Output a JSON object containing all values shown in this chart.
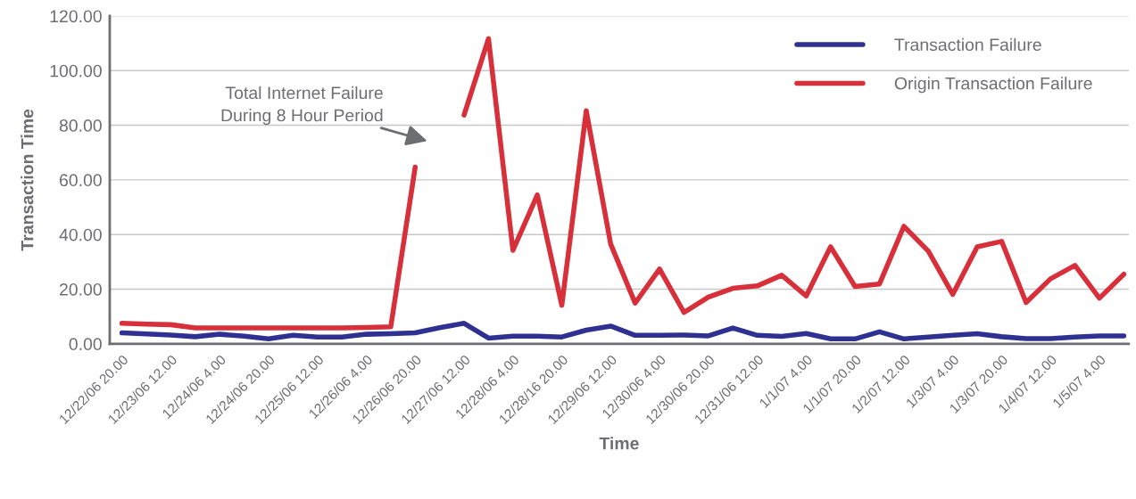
{
  "chart_data": {
    "type": "line",
    "xlabel": "Time",
    "ylabel": "Transaction Time",
    "categories": [
      "12/22/06 20.00",
      null,
      "12/23/06 12.00",
      null,
      "12/24/06 4.00",
      null,
      "12/24/06 20.00",
      null,
      "12/25/06 12.00",
      null,
      "12/26/06 4.00",
      null,
      "12/26/06 20.00",
      null,
      "12/27/06 12.00",
      null,
      "12/28/06 4.00",
      null,
      "12/28/16 20.00",
      null,
      "12/29/06 12.00",
      null,
      "12/30/06 4.00",
      null,
      "12/30/06 20.00",
      null,
      "12/31/06 12.00",
      null,
      "1/1/07 4.00",
      null,
      "1/1/07 20.00",
      null,
      "1/2/07 12.00",
      null,
      "1/3/07 4.00",
      null,
      "1/3/07 20.00",
      null,
      "1/4/07 12.00",
      null,
      "1/5/07 4.00",
      null
    ],
    "series": [
      {
        "name": "Transaction Failure",
        "color": "#2e3192",
        "values": [
          4.0,
          3.6,
          3.2,
          2.6,
          3.5,
          2.8,
          1.8,
          3.1,
          2.5,
          2.5,
          3.5,
          3.7,
          4.0,
          5.9,
          7.5,
          2.1,
          2.8,
          2.8,
          2.5,
          5.0,
          6.5,
          3.1,
          3.1,
          3.2,
          2.9,
          5.8,
          3.1,
          2.7,
          3.8,
          1.8,
          1.8,
          4.4,
          1.8,
          2.5,
          3.1,
          3.7,
          2.6,
          1.9,
          1.9,
          2.5,
          2.9,
          2.9
        ]
      },
      {
        "name": "Origin Transaction Failure",
        "color": "#d7303a",
        "values": [
          7.5,
          7.2,
          7.0,
          5.8,
          5.8,
          5.8,
          5.8,
          5.8,
          5.8,
          5.8,
          6.0,
          6.2,
          64.7,
          null,
          83.7,
          111.7,
          34.2,
          54.5,
          14.1,
          85.3,
          36.5,
          14.9,
          27.4,
          11.5,
          17.1,
          20.3,
          21.2,
          25.1,
          17.5,
          35.5,
          21.0,
          21.9,
          43.0,
          33.9,
          18.1,
          35.5,
          37.5,
          15.1,
          23.8,
          28.7,
          16.7,
          25.5
        ]
      }
    ],
    "ylim": [
      0,
      120
    ],
    "yticks": [
      {
        "value": 0,
        "label": "0.00"
      },
      {
        "value": 20,
        "label": "20.00"
      },
      {
        "value": 40,
        "label": "40.00"
      },
      {
        "value": 60,
        "label": "60.00"
      },
      {
        "value": 80,
        "label": "80.00"
      },
      {
        "value": 100,
        "label": "100.00"
      },
      {
        "value": 120,
        "label": "120.00"
      }
    ],
    "grid": "y",
    "legend": "top right",
    "marker": "none",
    "line_style": "solid",
    "annotations": [
      "Total Internet Failure\nDuring 8 Hour Period"
    ]
  }
}
